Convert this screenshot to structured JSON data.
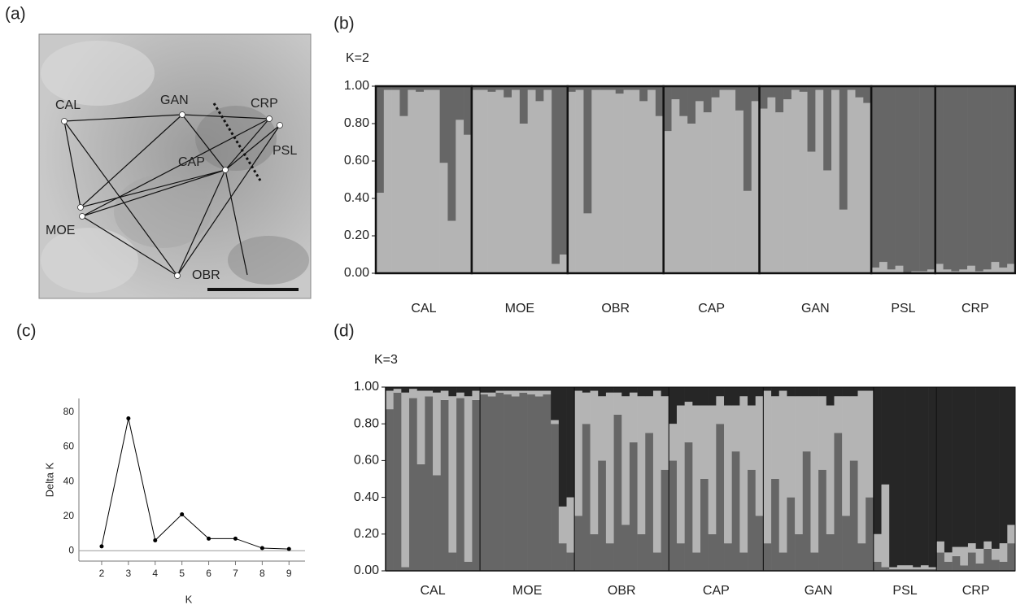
{
  "map": {
    "label": "(a)",
    "sites": [
      "CAL",
      "GAN",
      "CRP",
      "PSL",
      "CAP",
      "MOE",
      "OBR"
    ]
  },
  "chart_data": [
    {
      "type": "structure",
      "label": "(b)",
      "title": "K=2",
      "categories": [
        "CAL",
        "MOE",
        "OBR",
        "CAP",
        "GAN",
        "PSL",
        "CRP"
      ],
      "ylim": [
        0,
        1
      ],
      "yticks": [
        {
          "value": 0,
          "label": "0.00"
        },
        {
          "value": 0.2,
          "label": "0.20"
        },
        {
          "value": 0.4,
          "label": "0.40"
        },
        {
          "value": 0.6,
          "label": "0.60"
        },
        {
          "value": 0.8,
          "label": "0.80"
        },
        {
          "value": 1,
          "label": "1.00"
        }
      ],
      "series": [
        {
          "color": "#b4b4b4",
          "values": [
            [
              0.43,
              0.98,
              0.98,
              0.84,
              0.98,
              0.97,
              0.98,
              0.98,
              0.59,
              0.28,
              0.82,
              0.74
            ],
            [
              0.98,
              0.98,
              0.97,
              0.98,
              0.94,
              0.98,
              0.8,
              0.98,
              0.92,
              0.98,
              0.05,
              0.1
            ],
            [
              0.97,
              0.98,
              0.32,
              0.98,
              0.98,
              0.98,
              0.96,
              0.98,
              0.98,
              0.92,
              0.98,
              0.84
            ],
            [
              0.76,
              0.93,
              0.84,
              0.8,
              0.92,
              0.86,
              0.94,
              0.98,
              0.98,
              0.87,
              0.44,
              0.92
            ],
            [
              0.88,
              0.94,
              0.86,
              0.93,
              0.98,
              0.97,
              0.65,
              0.98,
              0.55,
              0.98,
              0.34,
              0.98,
              0.94,
              0.91
            ],
            [
              0.03,
              0.06,
              0.02,
              0.04,
              0.0,
              0.01,
              0.01,
              0.02
            ],
            [
              0.05,
              0.02,
              0.01,
              0.02,
              0.04,
              0.01,
              0.02,
              0.06,
              0.03,
              0.05
            ]
          ]
        },
        {
          "color": "#666666",
          "values": [
            [
              0.57,
              0.02,
              0.02,
              0.16,
              0.02,
              0.03,
              0.02,
              0.02,
              0.41,
              0.72,
              0.18,
              0.26
            ],
            [
              0.02,
              0.02,
              0.03,
              0.02,
              0.06,
              0.02,
              0.2,
              0.02,
              0.08,
              0.02,
              0.95,
              0.9
            ],
            [
              0.03,
              0.02,
              0.68,
              0.02,
              0.02,
              0.02,
              0.04,
              0.02,
              0.02,
              0.08,
              0.02,
              0.16
            ],
            [
              0.24,
              0.07,
              0.16,
              0.2,
              0.08,
              0.14,
              0.06,
              0.02,
              0.02,
              0.13,
              0.56,
              0.08
            ],
            [
              0.12,
              0.06,
              0.14,
              0.07,
              0.02,
              0.03,
              0.35,
              0.02,
              0.45,
              0.02,
              0.66,
              0.02,
              0.06,
              0.09
            ],
            [
              0.97,
              0.94,
              0.98,
              0.96,
              1.0,
              0.99,
              0.99,
              0.98
            ],
            [
              0.95,
              0.98,
              0.99,
              0.98,
              0.96,
              0.99,
              0.98,
              0.94,
              0.97,
              0.95
            ]
          ]
        }
      ]
    },
    {
      "type": "structure",
      "label": "(d)",
      "title": "K=3",
      "categories": [
        "CAL",
        "MOE",
        "OBR",
        "CAP",
        "GAN",
        "PSL",
        "CRP"
      ],
      "ylim": [
        0,
        1
      ],
      "yticks": [
        {
          "value": 0,
          "label": "0.00"
        },
        {
          "value": 0.2,
          "label": "0.20"
        },
        {
          "value": 0.4,
          "label": "0.40"
        },
        {
          "value": 0.6,
          "label": "0.60"
        },
        {
          "value": 0.8,
          "label": "0.80"
        },
        {
          "value": 1,
          "label": "1.00"
        }
      ],
      "series": [
        {
          "color": "#666666",
          "values": [
            [
              0.88,
              0.97,
              0.02,
              0.94,
              0.58,
              0.95,
              0.52,
              0.93,
              0.1,
              0.94,
              0.05,
              0.93
            ],
            [
              0.96,
              0.95,
              0.97,
              0.96,
              0.95,
              0.97,
              0.96,
              0.95,
              0.96,
              0.8,
              0.15,
              0.1
            ],
            [
              0.3,
              0.8,
              0.2,
              0.6,
              0.15,
              0.85,
              0.25,
              0.7,
              0.2,
              0.75,
              0.1,
              0.55
            ],
            [
              0.6,
              0.15,
              0.7,
              0.1,
              0.5,
              0.2,
              0.8,
              0.15,
              0.65,
              0.1,
              0.55,
              0.3
            ],
            [
              0.15,
              0.5,
              0.1,
              0.4,
              0.2,
              0.65,
              0.1,
              0.55,
              0.2,
              0.75,
              0.3,
              0.6,
              0.15,
              0.4
            ],
            [
              0.05,
              0.02,
              0.01,
              0.01,
              0.01,
              0.01,
              0.01,
              0.01
            ],
            [
              0.1,
              0.05,
              0.08,
              0.03,
              0.1,
              0.04,
              0.12,
              0.06,
              0.05,
              0.15
            ]
          ]
        },
        {
          "color": "#b4b4b4",
          "values": [
            [
              0.1,
              0.02,
              0.95,
              0.05,
              0.4,
              0.03,
              0.45,
              0.05,
              0.85,
              0.03,
              0.9,
              0.05
            ],
            [
              0.01,
              0.02,
              0.01,
              0.02,
              0.03,
              0.01,
              0.02,
              0.03,
              0.02,
              0.02,
              0.2,
              0.3
            ],
            [
              0.68,
              0.17,
              0.78,
              0.35,
              0.82,
              0.12,
              0.7,
              0.27,
              0.75,
              0.2,
              0.88,
              0.4
            ],
            [
              0.2,
              0.75,
              0.22,
              0.8,
              0.4,
              0.7,
              0.15,
              0.75,
              0.25,
              0.85,
              0.35,
              0.65
            ],
            [
              0.83,
              0.45,
              0.88,
              0.55,
              0.75,
              0.3,
              0.85,
              0.4,
              0.7,
              0.2,
              0.65,
              0.35,
              0.83,
              0.58
            ],
            [
              0.15,
              0.45,
              0.01,
              0.02,
              0.02,
              0.01,
              0.02,
              0.01
            ],
            [
              0.06,
              0.05,
              0.05,
              0.1,
              0.05,
              0.08,
              0.04,
              0.06,
              0.1,
              0.1
            ]
          ]
        },
        {
          "color": "#262626",
          "values": [
            [
              0.02,
              0.01,
              0.03,
              0.01,
              0.02,
              0.02,
              0.03,
              0.02,
              0.05,
              0.03,
              0.05,
              0.02
            ],
            [
              0.03,
              0.03,
              0.02,
              0.02,
              0.02,
              0.02,
              0.02,
              0.02,
              0.02,
              0.18,
              0.65,
              0.6
            ],
            [
              0.02,
              0.03,
              0.02,
              0.05,
              0.03,
              0.03,
              0.05,
              0.03,
              0.05,
              0.05,
              0.02,
              0.05
            ],
            [
              0.2,
              0.1,
              0.08,
              0.1,
              0.1,
              0.1,
              0.05,
              0.1,
              0.1,
              0.05,
              0.1,
              0.05
            ],
            [
              0.02,
              0.05,
              0.02,
              0.05,
              0.05,
              0.05,
              0.05,
              0.05,
              0.1,
              0.05,
              0.05,
              0.05,
              0.02,
              0.02
            ],
            [
              0.8,
              0.53,
              0.98,
              0.97,
              0.97,
              0.98,
              0.97,
              0.98
            ],
            [
              0.84,
              0.9,
              0.87,
              0.87,
              0.85,
              0.88,
              0.84,
              0.88,
              0.85,
              0.75
            ]
          ]
        }
      ]
    },
    {
      "type": "line",
      "label": "(c)",
      "xlabel": "K",
      "ylabel": "Delta K",
      "x": [
        2,
        3,
        4,
        5,
        6,
        7,
        8,
        9
      ],
      "values": [
        2.5,
        76.5,
        6,
        21,
        7,
        7,
        1.5,
        1
      ],
      "xlim": [
        1.15,
        9.6
      ],
      "ylim": [
        -6,
        88
      ],
      "xticks": [
        2,
        3,
        4,
        5,
        6,
        7,
        8,
        9
      ],
      "yticks": [
        0,
        20,
        40,
        60,
        80
      ],
      "color": "#000000"
    }
  ]
}
